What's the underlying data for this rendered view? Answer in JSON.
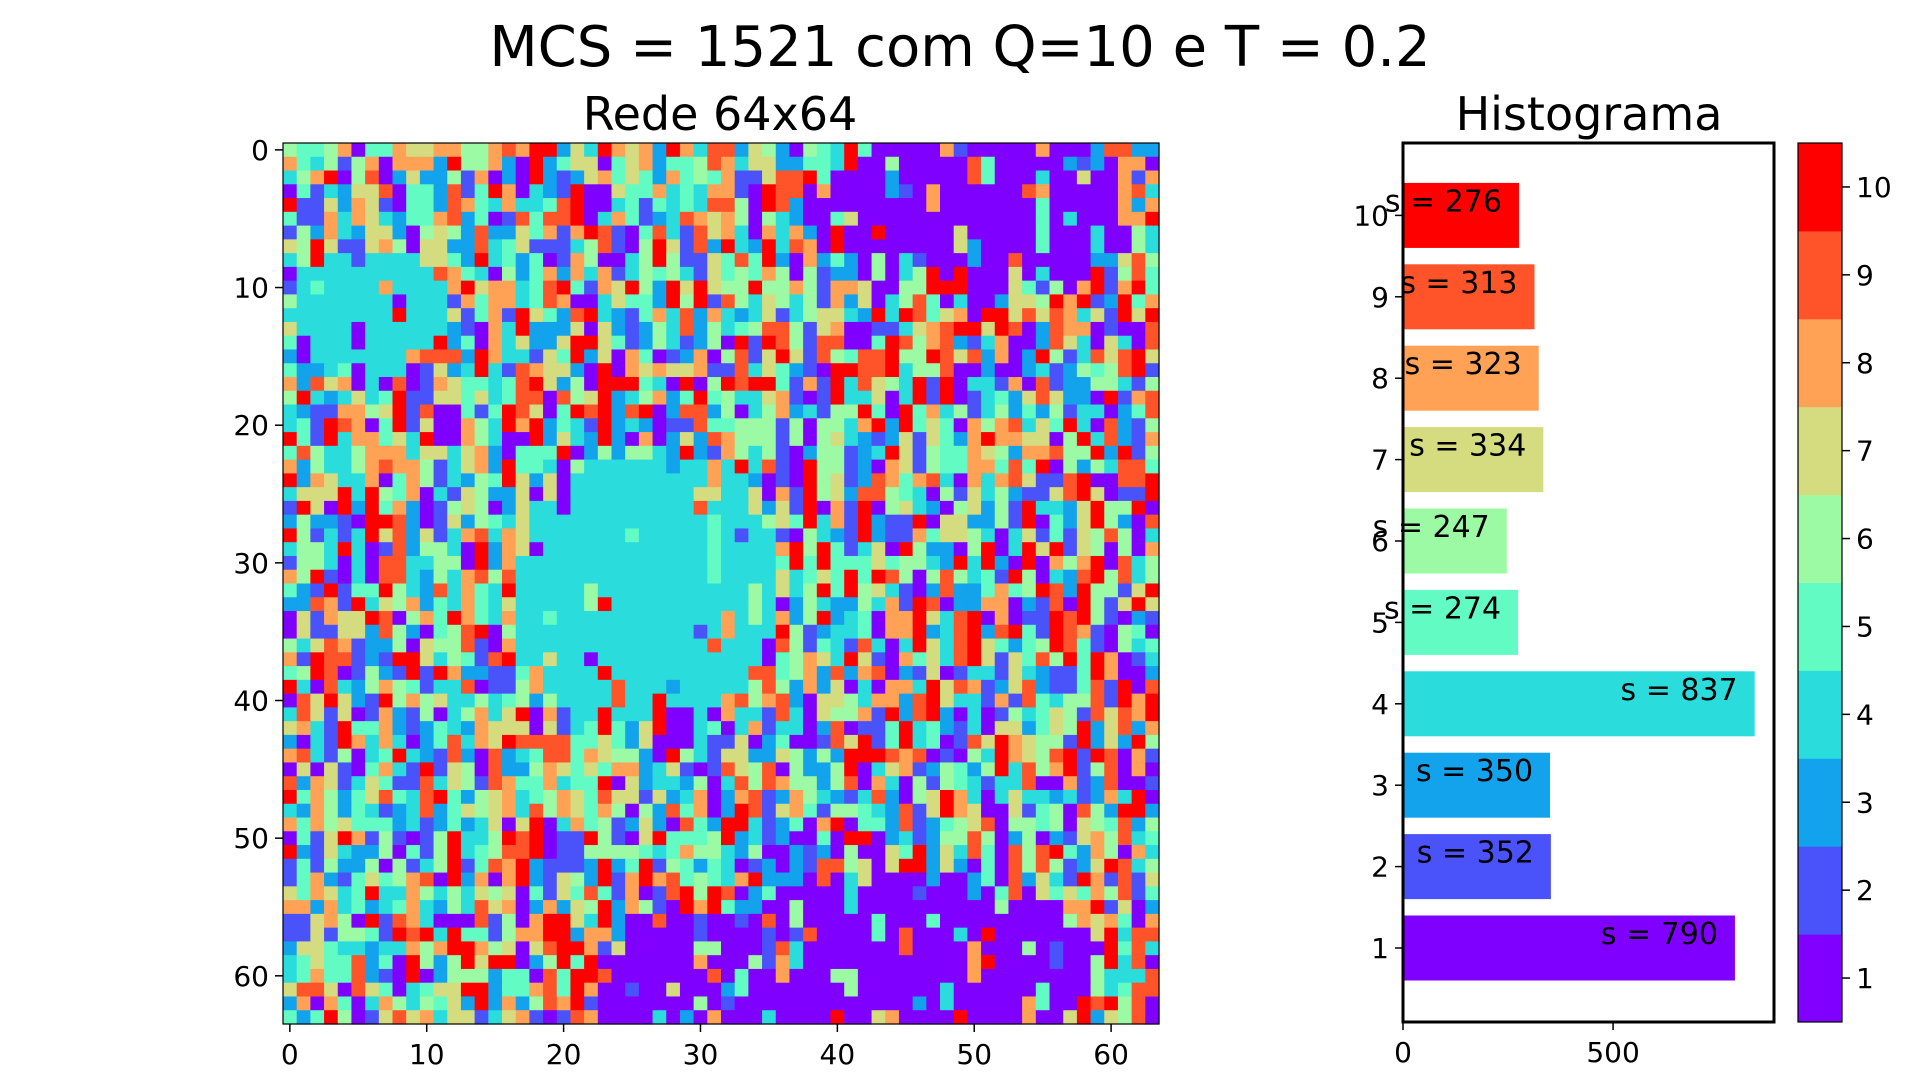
{
  "figure": {
    "suptitle": "MCS = 1521 com Q=10 e T = 0.2"
  },
  "chart_data": [
    {
      "type": "heatmap",
      "title": "Rede 64x64",
      "grid_size": [
        64,
        64
      ],
      "x_ticks": [
        "0",
        "10",
        "20",
        "30",
        "40",
        "50",
        "60"
      ],
      "y_ticks": [
        "0",
        "10",
        "20",
        "30",
        "40",
        "50",
        "60"
      ],
      "xlim": [
        -0.5,
        63.5
      ],
      "ylim": [
        63.5,
        -0.5
      ],
      "colormap": "rainbow",
      "value_range": [
        1,
        10
      ],
      "cells": "64x64 lattice of spin states 1..10 (Potts model snapshot); large domain of state 4 in the upper-left/center, state 1 domains in the upper-right and lower-right, remaining sites mixed"
    },
    {
      "type": "bar",
      "orientation": "horizontal",
      "title": "Histograma",
      "categories": [
        "1",
        "2",
        "3",
        "4",
        "5",
        "6",
        "7",
        "8",
        "9",
        "10"
      ],
      "values": [
        790,
        352,
        350,
        837,
        274,
        247,
        334,
        323,
        313,
        276
      ],
      "labels": [
        "s = 790",
        "s = 352",
        "s = 350",
        "s = 837",
        "s = 274",
        "s = 247",
        "s = 334",
        "s = 323",
        "s = 313",
        "s = 276"
      ],
      "colors": [
        "#8000ff",
        "#4a52f9",
        "#13a2ec",
        "#2adcdc",
        "#62fbc4",
        "#9cfaa4",
        "#d4dc7f",
        "#ffa256",
        "#ff532a",
        "#ff0000"
      ],
      "x_ticks": [
        "0",
        "500"
      ],
      "xlim": [
        0,
        883
      ],
      "grid": false
    },
    {
      "type": "colorbar",
      "ticks": [
        "1",
        "2",
        "3",
        "4",
        "5",
        "6",
        "7",
        "8",
        "9",
        "10"
      ],
      "colors": [
        "#8000ff",
        "#4a52f9",
        "#13a2ec",
        "#2adcdc",
        "#62fbc4",
        "#9cfaa4",
        "#d4dc7f",
        "#ffa256",
        "#ff532a",
        "#ff0000"
      ]
    }
  ]
}
